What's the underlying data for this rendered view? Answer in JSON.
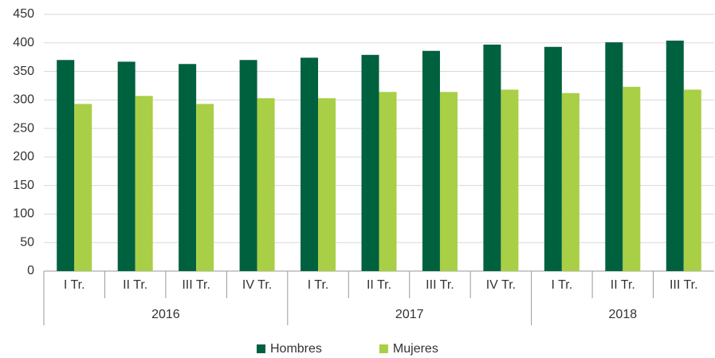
{
  "chart_data": {
    "type": "bar",
    "groups": [
      {
        "name": "2016",
        "categories": [
          "I Tr.",
          "II Tr.",
          "III Tr.",
          "IV Tr."
        ]
      },
      {
        "name": "2017",
        "categories": [
          "I Tr.",
          "II Tr.",
          "III Tr.",
          "IV Tr."
        ]
      },
      {
        "name": "2018",
        "categories": [
          "I Tr.",
          "II Tr.",
          "III Tr."
        ]
      }
    ],
    "series": [
      {
        "name": "Hombres",
        "color": "#00613f",
        "values": [
          370,
          367,
          363,
          370,
          374,
          379,
          386,
          397,
          393,
          401,
          404
        ]
      },
      {
        "name": "Mujeres",
        "color": "#a8cf45",
        "values": [
          293,
          307,
          293,
          303,
          303,
          314,
          314,
          318,
          312,
          323,
          318
        ]
      }
    ],
    "ylim": [
      0,
      450
    ],
    "yticks": [
      0,
      50,
      100,
      150,
      200,
      250,
      300,
      350,
      400,
      450
    ],
    "grid": true,
    "legend": "bottom"
  }
}
